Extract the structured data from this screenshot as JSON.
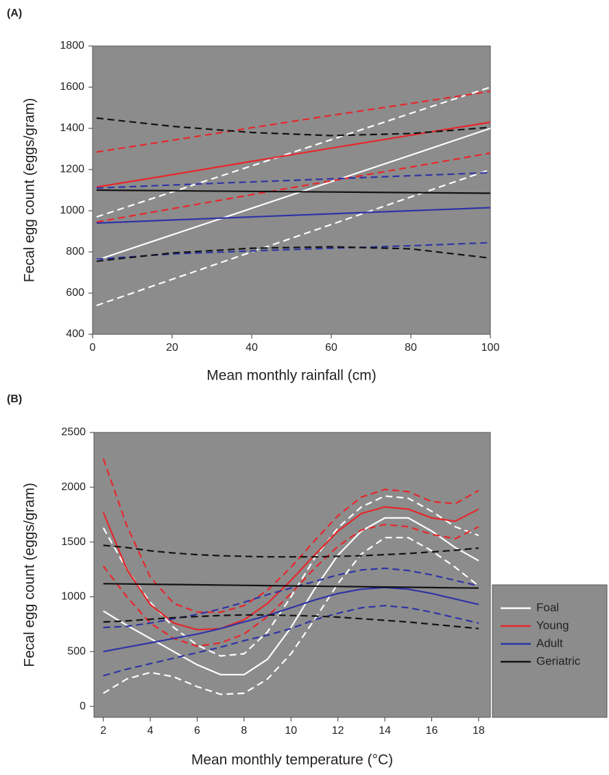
{
  "chart_data": [
    {
      "type": "line",
      "panel_label": "(A)",
      "xlabel": "Mean monthly rainfall (cm)",
      "ylabel": "Fecal egg count (eggs/gram)",
      "xlim": [
        0,
        100
      ],
      "ylim": [
        400,
        1800
      ],
      "xticks": [
        0,
        20,
        40,
        60,
        80,
        100
      ],
      "yticks": [
        400,
        600,
        800,
        1000,
        1200,
        1400,
        1600,
        1800
      ],
      "x": [
        1,
        20,
        40,
        60,
        80,
        100
      ],
      "series": [
        {
          "color": "#ffffff",
          "dashed": true,
          "values": [
            970,
            1091,
            1218,
            1345,
            1473,
            1600
          ]
        },
        {
          "color": "#ffffff",
          "dashed": false,
          "values": [
            760,
            883,
            1012,
            1141,
            1270,
            1400
          ]
        },
        {
          "color": "#ffffff",
          "dashed": true,
          "values": [
            540,
            667,
            800,
            933,
            1067,
            1200
          ]
        },
        {
          "color": "#e8262a",
          "dashed": true,
          "values": [
            1285,
            1342,
            1403,
            1463,
            1521,
            1580
          ]
        },
        {
          "color": "#e8262a",
          "dashed": false,
          "values": [
            1115,
            1175,
            1240,
            1304,
            1367,
            1430
          ]
        },
        {
          "color": "#e8262a",
          "dashed": true,
          "values": [
            945,
            1010,
            1078,
            1145,
            1212,
            1280
          ]
        },
        {
          "color": "#2e33a6",
          "dashed": true,
          "values": [
            1110,
            1125,
            1140,
            1155,
            1170,
            1185
          ]
        },
        {
          "color": "#2e33a6",
          "dashed": false,
          "values": [
            940,
            955,
            970,
            985,
            1000,
            1015
          ]
        },
        {
          "color": "#2e33a6",
          "dashed": true,
          "values": [
            765,
            790,
            805,
            818,
            830,
            845
          ]
        },
        {
          "color": "#111111",
          "dashed": true,
          "values": [
            1450,
            1410,
            1380,
            1365,
            1375,
            1405
          ]
        },
        {
          "color": "#111111",
          "dashed": false,
          "values": [
            1100,
            1097,
            1094,
            1091,
            1088,
            1085
          ]
        },
        {
          "color": "#111111",
          "dashed": true,
          "values": [
            755,
            795,
            818,
            825,
            815,
            770
          ]
        }
      ]
    },
    {
      "type": "line",
      "panel_label": "(B)",
      "xlabel": "Mean monthly temperature (°C)",
      "ylabel": "Fecal egg count (eggs/gram)",
      "xlim": [
        1.6,
        18.5
      ],
      "ylim": [
        -100,
        2500
      ],
      "xticks": [
        2,
        4,
        6,
        8,
        10,
        12,
        14,
        16,
        18
      ],
      "yticks": [
        0,
        500,
        1000,
        1500,
        2000,
        2500
      ],
      "legend": "right",
      "x": [
        2,
        3,
        4,
        5,
        6,
        7,
        8,
        9,
        10,
        11,
        12,
        13,
        14,
        15,
        16,
        17,
        18
      ],
      "series": [
        {
          "color": "#ffffff",
          "dashed": true,
          "values": [
            1630,
            1250,
            950,
            720,
            560,
            460,
            480,
            680,
            1000,
            1350,
            1630,
            1820,
            1920,
            1900,
            1780,
            1640,
            1560
          ]
        },
        {
          "name": "Foal",
          "color": "#ffffff",
          "dashed": false,
          "values": [
            870,
            740,
            620,
            500,
            380,
            290,
            290,
            430,
            720,
            1070,
            1380,
            1600,
            1720,
            1720,
            1600,
            1450,
            1330
          ]
        },
        {
          "color": "#ffffff",
          "dashed": true,
          "values": [
            120,
            250,
            310,
            270,
            180,
            110,
            120,
            250,
            480,
            790,
            1120,
            1390,
            1540,
            1540,
            1420,
            1270,
            1100
          ]
        },
        {
          "color": "#e8262a",
          "dashed": true,
          "values": [
            2260,
            1650,
            1180,
            940,
            860,
            860,
            920,
            1060,
            1270,
            1510,
            1740,
            1910,
            1980,
            1960,
            1870,
            1850,
            1970
          ]
        },
        {
          "name": "Young",
          "color": "#e8262a",
          "dashed": false,
          "values": [
            1770,
            1250,
            930,
            760,
            700,
            710,
            790,
            940,
            1150,
            1380,
            1600,
            1760,
            1820,
            1800,
            1720,
            1690,
            1800
          ]
        },
        {
          "color": "#e8262a",
          "dashed": true,
          "values": [
            1280,
            1000,
            760,
            620,
            550,
            580,
            660,
            820,
            1030,
            1260,
            1460,
            1610,
            1660,
            1640,
            1570,
            1530,
            1640
          ]
        },
        {
          "color": "#2e33a6",
          "dashed": true,
          "values": [
            720,
            730,
            760,
            800,
            840,
            890,
            950,
            1020,
            1080,
            1140,
            1200,
            1245,
            1260,
            1240,
            1200,
            1150,
            1100
          ]
        },
        {
          "name": "Adult",
          "color": "#2e33a6",
          "dashed": false,
          "values": [
            500,
            540,
            580,
            620,
            660,
            710,
            770,
            830,
            900,
            970,
            1030,
            1070,
            1085,
            1070,
            1030,
            980,
            930
          ]
        },
        {
          "color": "#2e33a6",
          "dashed": true,
          "values": [
            280,
            340,
            390,
            440,
            490,
            540,
            600,
            650,
            710,
            790,
            850,
            900,
            920,
            900,
            860,
            810,
            760
          ]
        },
        {
          "color": "#111111",
          "dashed": true,
          "values": [
            1470,
            1450,
            1420,
            1400,
            1385,
            1375,
            1370,
            1365,
            1365,
            1365,
            1370,
            1375,
            1385,
            1395,
            1410,
            1425,
            1445
          ]
        },
        {
          "name": "Geriatric",
          "color": "#111111",
          "dashed": false,
          "values": [
            1120,
            1117,
            1115,
            1112,
            1110,
            1107,
            1105,
            1102,
            1100,
            1097,
            1095,
            1092,
            1090,
            1087,
            1085,
            1082,
            1080
          ]
        },
        {
          "color": "#111111",
          "dashed": true,
          "values": [
            770,
            780,
            795,
            810,
            820,
            830,
            835,
            835,
            830,
            825,
            815,
            800,
            785,
            770,
            750,
            730,
            710
          ]
        }
      ]
    }
  ]
}
